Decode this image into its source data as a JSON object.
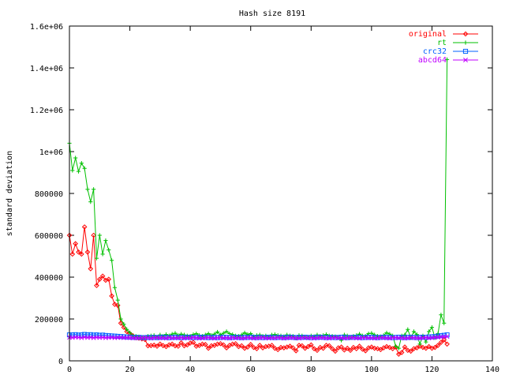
{
  "chart_data": {
    "type": "line",
    "title": "Hash size 8191",
    "xlabel": "",
    "ylabel": "standard deviation",
    "xlim": [
      0,
      140
    ],
    "ylim": [
      0,
      1600000
    ],
    "x_ticks": [
      0,
      20,
      40,
      60,
      80,
      100,
      120,
      140
    ],
    "y_ticks": [
      0,
      200000,
      400000,
      600000,
      800000,
      1000000,
      1200000,
      1400000,
      1600000
    ],
    "x_tick_labels": [
      "0",
      "20",
      "40",
      "60",
      "80",
      "100",
      "120",
      "140"
    ],
    "y_tick_labels": [
      "0",
      "200000",
      "400000",
      "600000",
      "800000",
      "1e+06",
      "1.2e+06",
      "1.4e+06",
      "1.6e+06"
    ],
    "grid": false,
    "legend_position": "top-right",
    "series": [
      {
        "name": "original",
        "color": "#ff0000",
        "marker": "diamond",
        "x": [
          0,
          1,
          2,
          3,
          4,
          5,
          6,
          7,
          8,
          9,
          10,
          11,
          12,
          13,
          14,
          15,
          16,
          17,
          18,
          19,
          20,
          21,
          22,
          23,
          24,
          25,
          26,
          27,
          28,
          29,
          30,
          31,
          32,
          33,
          34,
          35,
          36,
          37,
          38,
          39,
          40,
          41,
          42,
          43,
          44,
          45,
          46,
          47,
          48,
          49,
          50,
          51,
          52,
          53,
          54,
          55,
          56,
          57,
          58,
          59,
          60,
          61,
          62,
          63,
          64,
          65,
          66,
          67,
          68,
          69,
          70,
          71,
          72,
          73,
          74,
          75,
          76,
          77,
          78,
          79,
          80,
          81,
          82,
          83,
          84,
          85,
          86,
          87,
          88,
          89,
          90,
          91,
          92,
          93,
          94,
          95,
          96,
          97,
          98,
          99,
          100,
          101,
          102,
          103,
          104,
          105,
          106,
          107,
          108,
          109,
          110,
          111,
          112,
          113,
          114,
          115,
          116,
          117,
          118,
          119,
          120,
          121,
          122,
          123,
          124,
          125
        ],
        "y": [
          600000,
          510000,
          560000,
          520000,
          510000,
          640000,
          520000,
          440000,
          600000,
          360000,
          390000,
          405000,
          385000,
          390000,
          310000,
          270000,
          265000,
          180000,
          160000,
          140000,
          130000,
          120000,
          110000,
          108000,
          105000,
          102000,
          72000,
          73000,
          75000,
          70000,
          80000,
          73000,
          68000,
          76000,
          80000,
          72000,
          70000,
          86000,
          72000,
          76000,
          85000,
          88000,
          70000,
          74000,
          80000,
          78000,
          60000,
          72000,
          74000,
          80000,
          82000,
          76000,
          62000,
          74000,
          80000,
          82000,
          68000,
          72000,
          60000,
          66000,
          78000,
          64000,
          58000,
          74000,
          62000,
          68000,
          70000,
          74000,
          60000,
          54000,
          64000,
          62000,
          66000,
          70000,
          62000,
          48000,
          74000,
          72000,
          60000,
          68000,
          76000,
          58000,
          50000,
          64000,
          60000,
          74000,
          72000,
          58000,
          46000,
          62000,
          66000,
          52000,
          60000,
          50000,
          64000,
          58000,
          70000,
          56000,
          48000,
          62000,
          66000,
          60000,
          58000,
          54000,
          62000,
          68000,
          64000,
          58000,
          66000,
          32000,
          40000,
          66000,
          50000,
          46000,
          58000,
          62000,
          70000,
          64000,
          60000,
          68000,
          60000,
          64000,
          74000,
          88000,
          100000,
          80000
        ]
      },
      {
        "name": "rt",
        "color": "#00c000",
        "marker": "plus",
        "x": [
          0,
          1,
          2,
          3,
          4,
          5,
          6,
          7,
          8,
          9,
          10,
          11,
          12,
          13,
          14,
          15,
          16,
          17,
          18,
          19,
          20,
          21,
          22,
          23,
          24,
          25,
          26,
          27,
          28,
          29,
          30,
          31,
          32,
          33,
          34,
          35,
          36,
          37,
          38,
          39,
          40,
          41,
          42,
          43,
          44,
          45,
          46,
          47,
          48,
          49,
          50,
          51,
          52,
          53,
          54,
          55,
          56,
          57,
          58,
          59,
          60,
          61,
          62,
          63,
          64,
          65,
          66,
          67,
          68,
          69,
          70,
          71,
          72,
          73,
          74,
          75,
          76,
          77,
          78,
          79,
          80,
          81,
          82,
          83,
          84,
          85,
          86,
          87,
          88,
          89,
          90,
          91,
          92,
          93,
          94,
          95,
          96,
          97,
          98,
          99,
          100,
          101,
          102,
          103,
          104,
          105,
          106,
          107,
          108,
          109,
          110,
          111,
          112,
          113,
          114,
          115,
          116,
          117,
          118,
          119,
          120,
          121,
          122,
          123,
          124,
          125
        ],
        "y": [
          1040000,
          910000,
          970000,
          905000,
          945000,
          920000,
          820000,
          760000,
          820000,
          490000,
          600000,
          510000,
          575000,
          530000,
          480000,
          350000,
          290000,
          200000,
          175000,
          150000,
          135000,
          120000,
          118000,
          115000,
          112000,
          110000,
          118000,
          120000,
          122000,
          114000,
          124000,
          118000,
          126000,
          120000,
          128000,
          132000,
          122000,
          128000,
          124000,
          120000,
          118000,
          126000,
          130000,
          122000,
          118000,
          124000,
          130000,
          122000,
          128000,
          138000,
          124000,
          132000,
          140000,
          130000,
          126000,
          120000,
          118000,
          124000,
          134000,
          126000,
          130000,
          116000,
          122000,
          124000,
          118000,
          120000,
          114000,
          124000,
          126000,
          122000,
          120000,
          116000,
          124000,
          120000,
          118000,
          108000,
          122000,
          120000,
          114000,
          112000,
          120000,
          116000,
          124000,
          118000,
          122000,
          126000,
          120000,
          118000,
          116000,
          112000,
          98000,
          124000,
          120000,
          112000,
          118000,
          122000,
          128000,
          120000,
          118000,
          130000,
          132000,
          124000,
          118000,
          116000,
          122000,
          134000,
          128000,
          120000,
          70000,
          60000,
          120000,
          124000,
          150000,
          110000,
          140000,
          126000,
          80000,
          120000,
          90000,
          140000,
          160000,
          110000,
          130000,
          220000,
          180000,
          1440000
        ]
      },
      {
        "name": "crc32",
        "color": "#0060ff",
        "marker": "square",
        "x": [
          0,
          1,
          2,
          3,
          4,
          5,
          6,
          7,
          8,
          9,
          10,
          11,
          12,
          13,
          14,
          15,
          16,
          17,
          18,
          19,
          20,
          21,
          22,
          23,
          24,
          25,
          26,
          27,
          28,
          29,
          30,
          31,
          32,
          33,
          34,
          35,
          36,
          37,
          38,
          39,
          40,
          41,
          42,
          43,
          44,
          45,
          46,
          47,
          48,
          49,
          50,
          51,
          52,
          53,
          54,
          55,
          56,
          57,
          58,
          59,
          60,
          61,
          62,
          63,
          64,
          65,
          66,
          67,
          68,
          69,
          70,
          71,
          72,
          73,
          74,
          75,
          76,
          77,
          78,
          79,
          80,
          81,
          82,
          83,
          84,
          85,
          86,
          87,
          88,
          89,
          90,
          91,
          92,
          93,
          94,
          95,
          96,
          97,
          98,
          99,
          100,
          101,
          102,
          103,
          104,
          105,
          106,
          107,
          108,
          109,
          110,
          111,
          112,
          113,
          114,
          115,
          116,
          117,
          118,
          119,
          120,
          121,
          122,
          123,
          124,
          125
        ],
        "y": [
          124000,
          124000,
          125000,
          123000,
          124000,
          126000,
          124000,
          125000,
          123000,
          124000,
          122000,
          123000,
          121000,
          120000,
          119000,
          118000,
          117000,
          116000,
          115000,
          114000,
          113000,
          112000,
          112000,
          112000,
          111000,
          111000,
          112000,
          111000,
          112000,
          111000,
          112000,
          113000,
          112000,
          111000,
          112000,
          113000,
          112000,
          111000,
          112000,
          113000,
          112000,
          111000,
          112000,
          112000,
          113000,
          112000,
          111000,
          112000,
          112000,
          111000,
          112000,
          113000,
          112000,
          111000,
          112000,
          113000,
          112000,
          111000,
          112000,
          112000,
          113000,
          112000,
          111000,
          112000,
          111000,
          112000,
          113000,
          112000,
          111000,
          112000,
          112000,
          111000,
          112000,
          113000,
          112000,
          111000,
          112000,
          112000,
          113000,
          112000,
          111000,
          112000,
          112000,
          113000,
          112000,
          111000,
          112000,
          112000,
          111000,
          112000,
          113000,
          112000,
          111000,
          112000,
          112000,
          113000,
          112000,
          111000,
          112000,
          112000,
          113000,
          112000,
          111000,
          112000,
          113000,
          112000,
          112000,
          111000,
          112000,
          113000,
          112000,
          111000,
          112000,
          113000,
          112000,
          111000,
          112000,
          113000,
          112000,
          114000,
          115000,
          116000,
          118000,
          120000,
          122000,
          124000
        ]
      },
      {
        "name": "abcd64",
        "color": "#c000ff",
        "marker": "cross",
        "x": [
          0,
          1,
          2,
          3,
          4,
          5,
          6,
          7,
          8,
          9,
          10,
          11,
          12,
          13,
          14,
          15,
          16,
          17,
          18,
          19,
          20,
          21,
          22,
          23,
          24,
          25,
          26,
          27,
          28,
          29,
          30,
          31,
          32,
          33,
          34,
          35,
          36,
          37,
          38,
          39,
          40,
          41,
          42,
          43,
          44,
          45,
          46,
          47,
          48,
          49,
          50,
          51,
          52,
          53,
          54,
          55,
          56,
          57,
          58,
          59,
          60,
          61,
          62,
          63,
          64,
          65,
          66,
          67,
          68,
          69,
          70,
          71,
          72,
          73,
          74,
          75,
          76,
          77,
          78,
          79,
          80,
          81,
          82,
          83,
          84,
          85,
          86,
          87,
          88,
          89,
          90,
          91,
          92,
          93,
          94,
          95,
          96,
          97,
          98,
          99,
          100,
          101,
          102,
          103,
          104,
          105,
          106,
          107,
          108,
          109,
          110,
          111,
          112,
          113,
          114,
          115,
          116,
          117,
          118,
          119,
          120,
          121,
          122,
          123,
          124,
          125
        ],
        "y": [
          112000,
          111000,
          113000,
          112000,
          110000,
          113000,
          111000,
          112000,
          110000,
          112000,
          111000,
          112000,
          110000,
          111000,
          112000,
          110000,
          111000,
          112000,
          110000,
          111000,
          110000,
          109000,
          110000,
          109000,
          110000,
          111000,
          110000,
          108000,
          110000,
          111000,
          109000,
          110000,
          108000,
          111000,
          109000,
          110000,
          109000,
          111000,
          108000,
          110000,
          109000,
          111000,
          110000,
          108000,
          109000,
          110000,
          111000,
          109000,
          108000,
          110000,
          111000,
          109000,
          110000,
          108000,
          111000,
          109000,
          110000,
          108000,
          109000,
          111000,
          110000,
          108000,
          109000,
          110000,
          111000,
          109000,
          108000,
          110000,
          109000,
          111000,
          110000,
          108000,
          109000,
          111000,
          110000,
          109000,
          108000,
          110000,
          111000,
          109000,
          110000,
          108000,
          109000,
          111000,
          110000,
          109000,
          108000,
          110000,
          111000,
          109000,
          110000,
          108000,
          109000,
          111000,
          110000,
          109000,
          108000,
          110000,
          111000,
          109000,
          110000,
          108000,
          109000,
          111000,
          110000,
          109000,
          108000,
          110000,
          111000,
          109000,
          110000,
          108000,
          109000,
          111000,
          110000,
          109000,
          108000,
          110000,
          111000,
          109000,
          110000,
          112000,
          113000,
          114000,
          115000,
          116000
        ]
      }
    ]
  }
}
